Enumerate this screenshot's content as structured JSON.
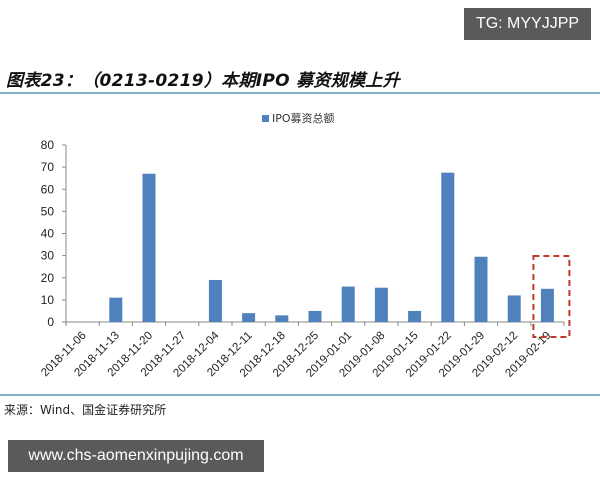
{
  "watermark_top": "TG: MYYJJPP",
  "figure_title": "图表23：（0213-0219）本期IPO 募资规模上升",
  "source": "来源：Wind、国金证券研究所",
  "watermark_bottom": "www.chs-aomenxinpujing.com",
  "colors": {
    "bar": "#4f81bd",
    "highlight_box": "#c0392b",
    "rule": "#7fb0c0"
  },
  "chart_data": {
    "type": "bar",
    "title": "",
    "xlabel": "",
    "ylabel": "",
    "ylim": [
      0,
      80
    ],
    "yticks": [
      0,
      10,
      20,
      30,
      40,
      50,
      60,
      70,
      80
    ],
    "grid": false,
    "legend_position": "top",
    "categories": [
      "2018-11-06",
      "2018-11-13",
      "2018-11-20",
      "2018-11-27",
      "2018-12-04",
      "2018-12-11",
      "2018-12-18",
      "2018-12-25",
      "2019-01-01",
      "2019-01-08",
      "2019-01-15",
      "2019-01-22",
      "2019-01-29",
      "2019-02-12",
      "2019-02-19"
    ],
    "series": [
      {
        "name": "IPO募资总额",
        "values": [
          0,
          11,
          67,
          0,
          19,
          4,
          3,
          5,
          16,
          15.5,
          5,
          67.5,
          29.5,
          12,
          15
        ]
      }
    ],
    "annotations": [
      {
        "type": "dashed-box",
        "target": "2019-02-19",
        "color": "#c0392b"
      }
    ]
  }
}
